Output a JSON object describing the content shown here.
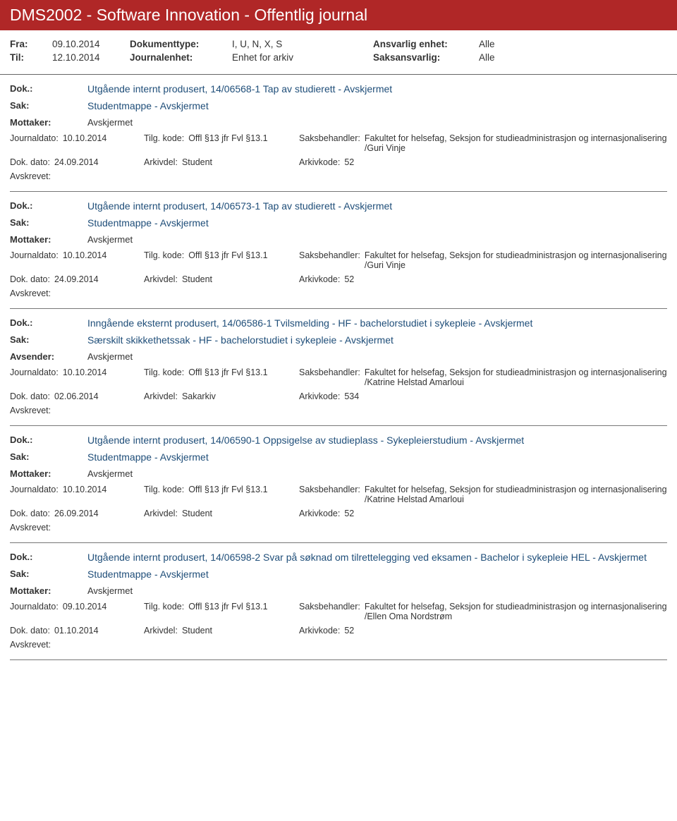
{
  "header": {
    "title": "DMS2002 - Software Innovation - Offentlig journal",
    "fra_label": "Fra:",
    "fra_value": "09.10.2014",
    "til_label": "Til:",
    "til_value": "12.10.2014",
    "doktype_label": "Dokumenttype:",
    "doktype_value": "I, U, N, X, S",
    "journalenhet_label": "Journalenhet:",
    "journalenhet_value": "Enhet for arkiv",
    "ansvarlig_label": "Ansvarlig enhet:",
    "ansvarlig_value": "Alle",
    "saksansvarlig_label": "Saksansvarlig:",
    "saksansvarlig_value": "Alle"
  },
  "labels": {
    "dok": "Dok.:",
    "sak": "Sak:",
    "mottaker": "Mottaker:",
    "avsender": "Avsender:",
    "journaldato": "Journaldato:",
    "tilgkode": "Tilg. kode:",
    "saksbehandler": "Saksbehandler:",
    "dokdato": "Dok. dato:",
    "arkivdel": "Arkivdel:",
    "arkivkode": "Arkivkode:",
    "avskrevet": "Avskrevet:"
  },
  "entries": [
    {
      "dok": "Utgående internt produsert, 14/06568-1 Tap av studierett - Avskjermet",
      "sak": "Studentmappe - Avskjermet",
      "party_label": "Mottaker:",
      "party_value": "Avskjermet",
      "journaldato": "10.10.2014",
      "tilgkode": "Offl §13 jfr Fvl §13.1",
      "saksbehandler": "Fakultet for helsefag, Seksjon for studieadministrasjon og internasjonalisering /Guri Vinje",
      "dokdato": "24.09.2014",
      "arkivdel": "Student",
      "arkivkode": "52"
    },
    {
      "dok": "Utgående internt produsert, 14/06573-1 Tap av studierett - Avskjermet",
      "sak": "Studentmappe - Avskjermet",
      "party_label": "Mottaker:",
      "party_value": "Avskjermet",
      "journaldato": "10.10.2014",
      "tilgkode": "Offl §13 jfr Fvl §13.1",
      "saksbehandler": "Fakultet for helsefag, Seksjon for studieadministrasjon og internasjonalisering /Guri Vinje",
      "dokdato": "24.09.2014",
      "arkivdel": "Student",
      "arkivkode": "52"
    },
    {
      "dok": "Inngående eksternt produsert, 14/06586-1 Tvilsmelding - HF - bachelorstudiet i sykepleie - Avskjermet",
      "sak": "Særskilt skikkethetssak - HF - bachelorstudiet i sykepleie - Avskjermet",
      "party_label": "Avsender:",
      "party_value": "Avskjermet",
      "journaldato": "10.10.2014",
      "tilgkode": "Offl §13 jfr Fvl §13.1",
      "saksbehandler": "Fakultet for helsefag, Seksjon for studieadministrasjon og internasjonalisering /Katrine Helstad Amarloui",
      "dokdato": "02.06.2014",
      "arkivdel": "Sakarkiv",
      "arkivkode": "534"
    },
    {
      "dok": "Utgående internt produsert, 14/06590-1 Oppsigelse av studieplass - Sykepleierstudium - Avskjermet",
      "sak": "Studentmappe - Avskjermet",
      "party_label": "Mottaker:",
      "party_value": "Avskjermet",
      "journaldato": "10.10.2014",
      "tilgkode": "Offl §13 jfr Fvl §13.1",
      "saksbehandler": "Fakultet for helsefag, Seksjon for studieadministrasjon og internasjonalisering /Katrine Helstad Amarloui",
      "dokdato": "26.09.2014",
      "arkivdel": "Student",
      "arkivkode": "52"
    },
    {
      "dok": "Utgående internt produsert, 14/06598-2 Svar på søknad om tilrettelegging ved eksamen - Bachelor i sykepleie HEL - Avskjermet",
      "sak": "Studentmappe - Avskjermet",
      "party_label": "Mottaker:",
      "party_value": "Avskjermet",
      "journaldato": "09.10.2014",
      "tilgkode": "Offl §13 jfr Fvl §13.1",
      "saksbehandler": "Fakultet for helsefag, Seksjon for studieadministrasjon og internasjonalisering /Ellen Oma Nordstrøm",
      "dokdato": "01.10.2014",
      "arkivdel": "Student",
      "arkivkode": "52"
    }
  ]
}
